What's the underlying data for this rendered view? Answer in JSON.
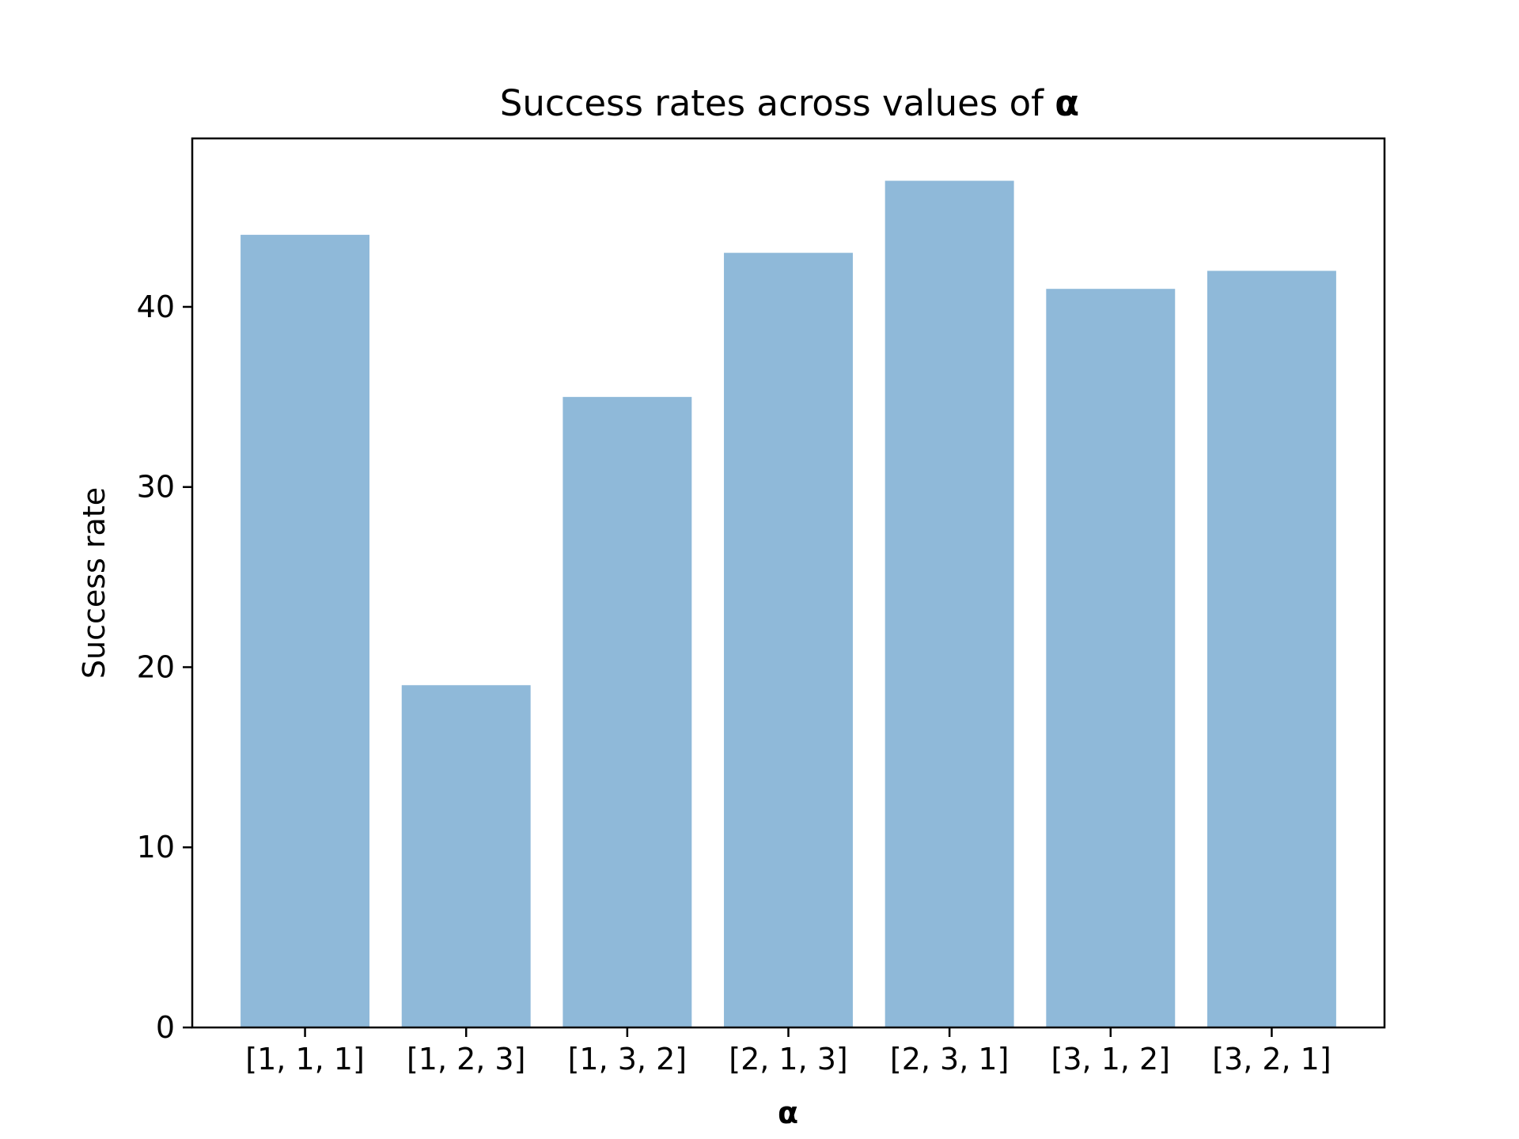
{
  "chart_data": {
    "type": "bar",
    "title": "Success rates across values of ",
    "title_symbol": "α",
    "xlabel": "α",
    "ylabel": "Success rate",
    "categories": [
      "[1, 1, 1]",
      "[1, 2, 3]",
      "[1, 3, 2]",
      "[2, 1, 3]",
      "[2, 3, 1]",
      "[3, 1, 2]",
      "[3, 2, 1]"
    ],
    "values": [
      44,
      19,
      35,
      43,
      47,
      41,
      42
    ],
    "ylim": [
      0,
      49.35
    ],
    "yticks": [
      0,
      10,
      20,
      30,
      40
    ],
    "grid": false,
    "legend": "none",
    "bar_color": "#8fb9d9"
  }
}
